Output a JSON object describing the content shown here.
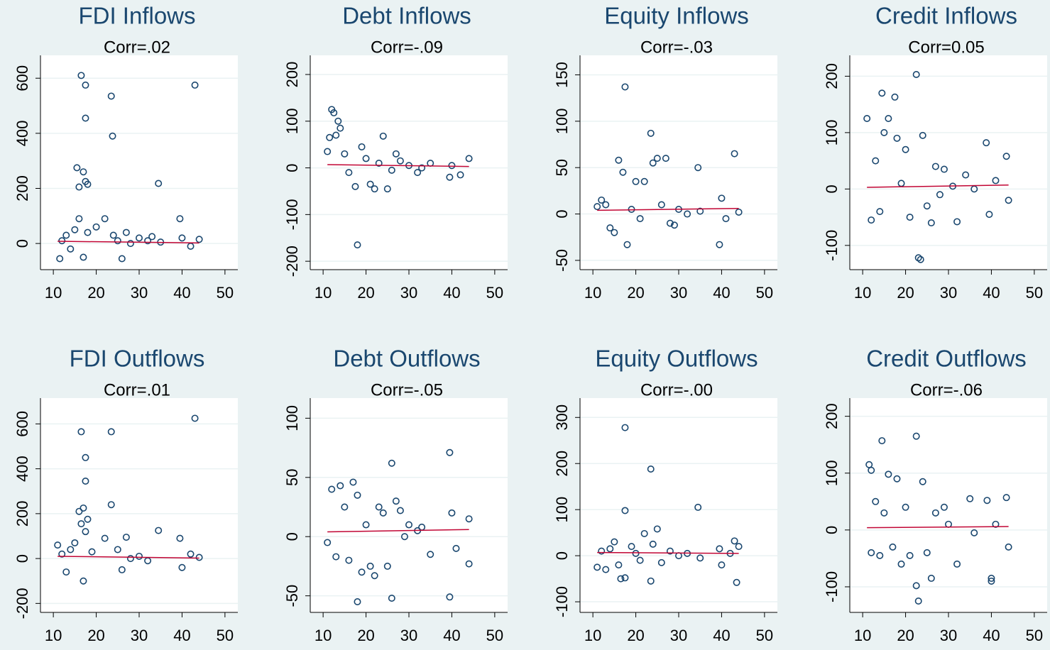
{
  "chart_data": [
    {
      "type": "scatter",
      "title": "FDI Inflows",
      "subtitle": "Corr=.02",
      "color": "#1a476f",
      "grid": true,
      "x": [
        16.5,
        17.5,
        17.5,
        23.5,
        23.8,
        43,
        15.5,
        17,
        17.5,
        16,
        34.5,
        18,
        12,
        13,
        14,
        15,
        16,
        17,
        18,
        20,
        22,
        24,
        26,
        27,
        30,
        32,
        35,
        39.5,
        40,
        42,
        44,
        11.5,
        25,
        28,
        33
      ],
      "values": [
        610,
        575,
        455,
        535,
        390,
        575,
        275,
        260,
        225,
        205,
        218,
        215,
        10,
        30,
        -20,
        50,
        90,
        -50,
        40,
        60,
        90,
        30,
        -55,
        40,
        20,
        10,
        5,
        90,
        20,
        -10,
        15,
        -55,
        10,
        0,
        25
      ],
      "fit_line": {
        "x": [
          11,
          44
        ],
        "values": [
          8,
          2
        ],
        "color": "#c10534"
      },
      "xlim": [
        7,
        53
      ],
      "xticks": [
        10,
        20,
        30,
        40,
        50
      ],
      "ylim": [
        -95,
        683
      ],
      "yticks": [
        0,
        200,
        400,
        600
      ]
    },
    {
      "type": "scatter",
      "title": "Debt Inflows",
      "subtitle": "Corr=-.09",
      "color": "#1a476f",
      "grid": true,
      "x": [
        12,
        12.5,
        13.5,
        14,
        11.5,
        13,
        18,
        17.5,
        21,
        22,
        25,
        24,
        19,
        15,
        16,
        20,
        23,
        26,
        28,
        30,
        32,
        35,
        39.5,
        40,
        42,
        44,
        11,
        27,
        33
      ],
      "values": [
        125,
        118,
        100,
        85,
        65,
        70,
        -165,
        -40,
        -35,
        -45,
        -45,
        68,
        45,
        30,
        -10,
        20,
        10,
        -5,
        15,
        5,
        -10,
        10,
        -20,
        5,
        -15,
        20,
        35,
        30,
        0
      ],
      "fit_line": {
        "x": [
          11,
          44
        ],
        "values": [
          7,
          3
        ],
        "color": "#c10534"
      },
      "xlim": [
        7,
        53
      ],
      "xticks": [
        10,
        20,
        30,
        40,
        50
      ],
      "ylim": [
        -218,
        241
      ],
      "yticks": [
        -200,
        -100,
        0,
        100,
        200
      ]
    },
    {
      "type": "scatter",
      "title": "Equity Inflows",
      "subtitle": "Corr=-.03",
      "color": "#1a476f",
      "grid": true,
      "x": [
        17.5,
        23.5,
        12,
        13,
        16,
        17,
        18,
        14,
        15,
        20,
        22,
        24,
        25,
        27,
        34.5,
        39.5,
        43,
        40,
        19,
        21,
        26,
        28,
        30,
        32,
        35,
        41,
        44,
        11,
        29
      ],
      "values": [
        137,
        87,
        15,
        10,
        58,
        45,
        -33,
        -15,
        -20,
        35,
        35,
        55,
        60,
        60,
        50,
        -33,
        65,
        17,
        5,
        -5,
        10,
        -10,
        5,
        0,
        3,
        -5,
        2,
        8,
        -12
      ],
      "fit_line": {
        "x": [
          11,
          44
        ],
        "values": [
          4,
          6
        ],
        "color": "#c10534"
      },
      "xlim": [
        7,
        53
      ],
      "xticks": [
        10,
        20,
        30,
        40,
        50
      ],
      "ylim": [
        -60,
        171
      ],
      "yticks": [
        -50,
        0,
        50,
        100,
        150
      ]
    },
    {
      "type": "scatter",
      "title": "Credit Inflows",
      "subtitle": "Corr=0.05",
      "color": "#1a476f",
      "grid": true,
      "x": [
        22.5,
        14.5,
        17.5,
        11,
        16,
        15,
        18,
        24,
        23,
        23.5,
        12,
        13,
        14,
        20,
        21,
        25,
        26,
        27,
        29,
        32,
        34,
        38.8,
        39.5,
        43.5,
        44,
        19,
        28,
        31,
        36,
        41
      ],
      "values": [
        203,
        170,
        163,
        125,
        125,
        100,
        90,
        95,
        -122,
        -125,
        -55,
        50,
        -40,
        70,
        -50,
        -30,
        -60,
        40,
        35,
        -58,
        25,
        82,
        -45,
        58,
        -20,
        10,
        -10,
        5,
        0,
        15
      ],
      "fit_line": {
        "x": [
          11,
          44
        ],
        "values": [
          3,
          7
        ],
        "color": "#c10534"
      },
      "xlim": [
        7,
        53
      ],
      "xticks": [
        10,
        20,
        30,
        40,
        50
      ],
      "ylim": [
        -143,
        237
      ],
      "yticks": [
        -100,
        0,
        100,
        200
      ]
    },
    {
      "type": "scatter",
      "title": "FDI Outflows",
      "subtitle": "Corr=.01",
      "color": "#1a476f",
      "grid": true,
      "x": [
        43,
        16.5,
        23.5,
        17.5,
        17.5,
        23.5,
        17,
        16,
        18,
        16.5,
        17.5,
        34.5,
        39.5,
        12,
        13,
        14,
        15,
        17,
        19,
        22,
        25,
        26,
        27,
        30,
        32,
        40,
        42,
        44,
        11,
        28
      ],
      "values": [
        625,
        565,
        565,
        450,
        345,
        240,
        225,
        210,
        175,
        155,
        120,
        125,
        90,
        20,
        -60,
        40,
        70,
        -100,
        30,
        90,
        40,
        -50,
        95,
        10,
        -10,
        -40,
        20,
        5,
        60,
        0
      ],
      "fit_line": {
        "x": [
          11,
          44
        ],
        "values": [
          10,
          2
        ],
        "color": "#c10534"
      },
      "xlim": [
        7,
        53
      ],
      "xticks": [
        10,
        20,
        30,
        40,
        50
      ],
      "ylim": [
        -240,
        715
      ],
      "yticks": [
        -200,
        0,
        200,
        400,
        600
      ]
    },
    {
      "type": "scatter",
      "title": "Debt Outflows",
      "subtitle": "Corr=-.05",
      "color": "#1a476f",
      "grid": true,
      "x": [
        39.5,
        26,
        18,
        26,
        39.5,
        12,
        14,
        17,
        13,
        15,
        16,
        18,
        19,
        20,
        21,
        22,
        23,
        24,
        25,
        27,
        28,
        30,
        32,
        35,
        40,
        41,
        44,
        44,
        11,
        29,
        33
      ],
      "values": [
        71,
        62,
        -55,
        -52,
        -51,
        40,
        43,
        46,
        -17,
        25,
        -20,
        35,
        -30,
        10,
        -25,
        -33,
        25,
        20,
        -25,
        30,
        22,
        10,
        5,
        -15,
        20,
        -10,
        15,
        -23,
        -5,
        0,
        8
      ],
      "fit_line": {
        "x": [
          11,
          44
        ],
        "values": [
          4,
          6
        ],
        "color": "#c10534"
      },
      "xlim": [
        7,
        53
      ],
      "xticks": [
        10,
        20,
        30,
        40,
        50
      ],
      "ylim": [
        -64,
        117
      ],
      "yticks": [
        -50,
        0,
        50,
        100
      ]
    },
    {
      "type": "scatter",
      "title": "Equity Outflows",
      "subtitle": "Corr=-.00",
      "color": "#1a476f",
      "grid": true,
      "x": [
        17.5,
        23.5,
        34.5,
        17.5,
        22,
        25,
        23.5,
        16.5,
        17.5,
        43.5,
        12,
        13,
        14,
        15,
        16,
        19,
        20,
        21,
        24,
        26,
        28,
        30,
        32,
        35,
        39.5,
        40,
        42,
        44,
        11,
        43
      ],
      "values": [
        278,
        188,
        105,
        98,
        48,
        58,
        -55,
        -50,
        -48,
        -58,
        10,
        -30,
        15,
        30,
        -20,
        20,
        5,
        -10,
        25,
        -15,
        10,
        0,
        5,
        -5,
        15,
        -20,
        5,
        20,
        -25,
        32
      ],
      "fit_line": {
        "x": [
          11,
          44
        ],
        "values": [
          7,
          5
        ],
        "color": "#c10534"
      },
      "xlim": [
        7,
        53
      ],
      "xticks": [
        10,
        20,
        30,
        40,
        50
      ],
      "ylim": [
        -123,
        342
      ],
      "yticks": [
        -100,
        0,
        100,
        200,
        300
      ]
    },
    {
      "type": "scatter",
      "title": "Credit Outflows",
      "subtitle": "Corr=-.06",
      "color": "#1a476f",
      "grid": true,
      "x": [
        22.5,
        14.5,
        11.5,
        12,
        16,
        18,
        24,
        35,
        39,
        43.5,
        22.5,
        23,
        26,
        32,
        40,
        40,
        12,
        13,
        14,
        15,
        17,
        19,
        20,
        21,
        25,
        27,
        29,
        30,
        36,
        44,
        41
      ],
      "values": [
        165,
        157,
        115,
        105,
        98,
        90,
        85,
        55,
        52,
        57,
        -98,
        -125,
        -85,
        -60,
        -85,
        -90,
        -40,
        50,
        -45,
        30,
        -30,
        -60,
        40,
        -45,
        -40,
        30,
        40,
        10,
        -5,
        -30,
        10
      ],
      "fit_line": {
        "x": [
          11,
          44
        ],
        "values": [
          4,
          6
        ],
        "color": "#c10534"
      },
      "xlim": [
        7,
        53
      ],
      "xticks": [
        10,
        20,
        30,
        40,
        50
      ],
      "ylim": [
        -145,
        232
      ],
      "yticks": [
        -100,
        0,
        100,
        200
      ]
    }
  ]
}
